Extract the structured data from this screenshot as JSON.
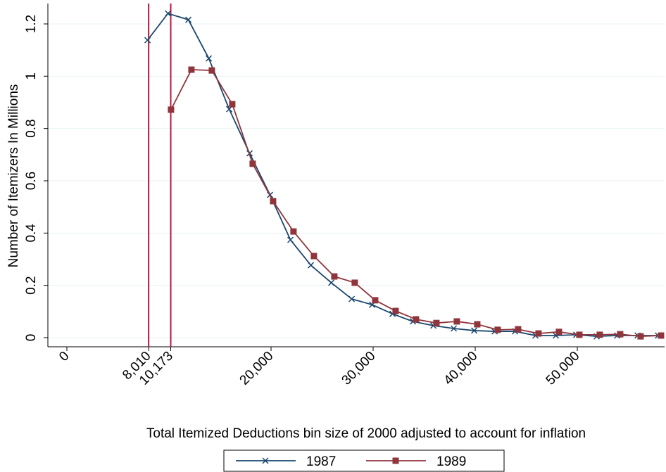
{
  "chart_data": {
    "type": "line",
    "x_label": "Total Itemized Deductions bin size of 2000 adjusted to account for inflation",
    "y_label": "Number of Itemizers In Millions",
    "xlim": [
      -1862,
      58550
    ],
    "ylim": [
      -0.035,
      1.278
    ],
    "xticks": [
      0,
      {
        "value": 8010,
        "label": "8,010"
      },
      {
        "value": 10173,
        "label": "10,173"
      },
      {
        "value": 20000,
        "label": "20,000"
      },
      {
        "value": 30000,
        "label": "30,000"
      },
      {
        "value": 40000,
        "label": "40,000"
      },
      {
        "value": 50000,
        "label": "50,000"
      }
    ],
    "yticks": [
      0,
      0.2,
      0.4,
      0.6,
      0.8,
      1,
      1.2
    ],
    "grid": true,
    "xlines": [
      8010,
      10173
    ],
    "xline_color": "#c0143c",
    "series": [
      {
        "name": "1987",
        "color": "#1a476f",
        "marker": "x",
        "x": [
          7900,
          9900,
          11900,
          13900,
          15900,
          17900,
          19900,
          21900,
          23900,
          25900,
          27900,
          29900,
          31900,
          33900,
          35900,
          37900,
          39900,
          41900,
          43900,
          45900,
          47900,
          49900,
          51900,
          53900,
          55900,
          57900
        ],
        "values": [
          1.138,
          1.24,
          1.216,
          1.068,
          0.874,
          0.705,
          0.546,
          0.374,
          0.277,
          0.21,
          0.148,
          0.126,
          0.091,
          0.062,
          0.046,
          0.035,
          0.027,
          0.024,
          0.024,
          0.008,
          0.008,
          0.011,
          0.005,
          0.008,
          0.008,
          0.008
        ]
      },
      {
        "name": "1989",
        "color": "#90353b",
        "marker": "square",
        "x": [
          10200,
          12200,
          14200,
          16200,
          18200,
          20200,
          22200,
          24200,
          26200,
          28200,
          30200,
          32200,
          34200,
          36200,
          38200,
          40200,
          42200,
          44200,
          46200,
          48200,
          50200,
          52200,
          54200,
          56200,
          58200
        ],
        "values": [
          0.872,
          1.025,
          1.022,
          0.893,
          0.665,
          0.522,
          0.406,
          0.312,
          0.234,
          0.21,
          0.143,
          0.102,
          0.07,
          0.056,
          0.062,
          0.051,
          0.03,
          0.032,
          0.016,
          0.022,
          0.011,
          0.011,
          0.013,
          0.005,
          0.008
        ]
      }
    ]
  }
}
